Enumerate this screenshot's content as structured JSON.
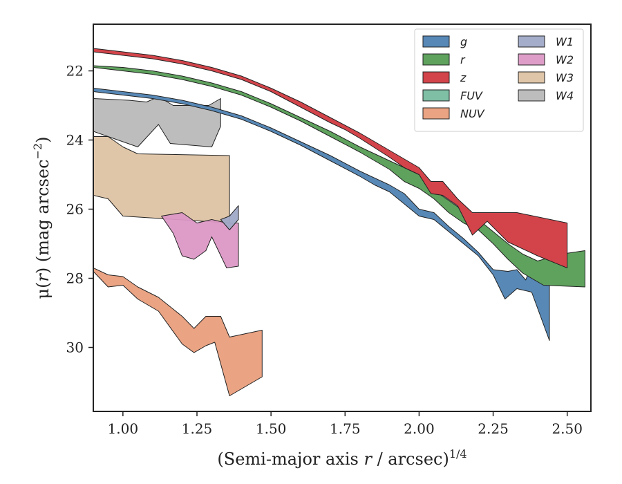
{
  "chart_data": {
    "type": "area",
    "xlabel": "(Semi-major axis r / arcsec)",
    "xlabel_parts": {
      "prefix": "(Semi-major axis ",
      "var": "r",
      "suffix": " / arcsec)",
      "sup": "1/4"
    },
    "ylabel_parts": {
      "prefix": "μ(",
      "var": "r",
      "suffix": ") (mag arcsec",
      "sup": "−2",
      "close": ")"
    },
    "xlim": [
      0.9,
      2.58
    ],
    "ylim": [
      31.85,
      20.65
    ],
    "y_inverted": true,
    "x_ticks": [
      1.0,
      1.25,
      1.5,
      1.75,
      2.0,
      2.25,
      2.5
    ],
    "x_tick_labels": [
      "1.00",
      "1.25",
      "1.50",
      "1.75",
      "2.00",
      "2.25",
      "2.50"
    ],
    "y_ticks": [
      22,
      24,
      26,
      28,
      30
    ],
    "y_tick_labels": [
      "22",
      "24",
      "26",
      "28",
      "30"
    ],
    "legend_position": "top-right",
    "legend_columns": 2,
    "series": [
      {
        "name": "W3",
        "color": "#d8b892",
        "opacity": 0.8,
        "upper": [
          [
            0.9,
            23.9
          ],
          [
            0.95,
            23.9
          ],
          [
            1.0,
            24.2
          ],
          [
            1.05,
            24.4
          ],
          [
            1.36,
            24.45
          ]
        ],
        "lower": [
          [
            0.9,
            25.6
          ],
          [
            0.95,
            25.7
          ],
          [
            1.0,
            26.2
          ],
          [
            1.36,
            26.4
          ]
        ]
      },
      {
        "name": "W2",
        "color": "#dc98c5",
        "opacity": 0.95,
        "upper": [
          [
            1.2,
            26.1
          ],
          [
            1.25,
            26.4
          ],
          [
            1.3,
            26.3
          ],
          [
            1.35,
            26.4
          ],
          [
            1.39,
            26.4
          ]
        ],
        "lower": [
          [
            1.13,
            26.2
          ],
          [
            1.17,
            26.7
          ],
          [
            1.2,
            27.35
          ],
          [
            1.24,
            27.45
          ],
          [
            1.28,
            27.2
          ],
          [
            1.3,
            26.8
          ],
          [
            1.35,
            27.7
          ],
          [
            1.39,
            27.65
          ]
        ]
      },
      {
        "name": "W1",
        "color": "#9fa9c6",
        "opacity": 0.95,
        "upper": [
          [
            1.33,
            26.3
          ],
          [
            1.36,
            26.2
          ],
          [
            1.39,
            25.9
          ]
        ],
        "lower": [
          [
            1.33,
            26.3
          ],
          [
            1.36,
            26.6
          ],
          [
            1.39,
            26.3
          ]
        ]
      },
      {
        "name": "W4",
        "color": "#b9b9b9",
        "opacity": 0.95,
        "upper": [
          [
            0.9,
            22.8
          ],
          [
            1.02,
            22.85
          ],
          [
            1.08,
            22.9
          ],
          [
            1.12,
            22.75
          ],
          [
            1.17,
            23.0
          ],
          [
            1.29,
            23.0
          ],
          [
            1.33,
            22.8
          ]
        ],
        "lower": [
          [
            0.9,
            23.75
          ],
          [
            1.05,
            24.2
          ],
          [
            1.12,
            23.55
          ],
          [
            1.16,
            24.1
          ],
          [
            1.3,
            24.2
          ],
          [
            1.33,
            23.6
          ]
        ]
      },
      {
        "name": "NUV",
        "color": "#eaa383",
        "opacity": 1,
        "upper": [
          [
            0.9,
            27.7
          ],
          [
            0.95,
            27.9
          ],
          [
            1.0,
            27.95
          ],
          [
            1.05,
            28.25
          ],
          [
            1.12,
            28.55
          ],
          [
            1.2,
            29.1
          ],
          [
            1.24,
            29.45
          ],
          [
            1.28,
            29.1
          ],
          [
            1.33,
            29.1
          ],
          [
            1.36,
            29.7
          ],
          [
            1.47,
            29.5
          ]
        ],
        "lower": [
          [
            0.9,
            27.8
          ],
          [
            0.95,
            28.25
          ],
          [
            1.0,
            28.2
          ],
          [
            1.05,
            28.6
          ],
          [
            1.12,
            28.95
          ],
          [
            1.2,
            29.9
          ],
          [
            1.24,
            30.15
          ],
          [
            1.28,
            29.95
          ],
          [
            1.31,
            29.85
          ],
          [
            1.36,
            31.4
          ],
          [
            1.47,
            30.85
          ]
        ]
      },
      {
        "name": "FUV",
        "color": "#7fbfa6",
        "opacity": 1,
        "upper": [],
        "lower": []
      },
      {
        "name": "g",
        "color": "#5788b6",
        "opacity": 1,
        "upper": [
          [
            0.9,
            22.5
          ],
          [
            1.0,
            22.6
          ],
          [
            1.1,
            22.7
          ],
          [
            1.2,
            22.85
          ],
          [
            1.3,
            23.05
          ],
          [
            1.4,
            23.3
          ],
          [
            1.5,
            23.65
          ],
          [
            1.6,
            24.05
          ],
          [
            1.7,
            24.45
          ],
          [
            1.8,
            24.9
          ],
          [
            1.9,
            25.3
          ],
          [
            1.95,
            25.55
          ],
          [
            2.0,
            26.0
          ],
          [
            2.05,
            26.1
          ],
          [
            2.1,
            26.5
          ],
          [
            2.15,
            26.85
          ],
          [
            2.2,
            27.25
          ],
          [
            2.25,
            27.75
          ],
          [
            2.3,
            27.8
          ],
          [
            2.33,
            27.75
          ],
          [
            2.36,
            28.05
          ],
          [
            2.38,
            27.6
          ],
          [
            2.44,
            28.0
          ]
        ],
        "lower": [
          [
            0.9,
            22.6
          ],
          [
            1.0,
            22.7
          ],
          [
            1.1,
            22.8
          ],
          [
            1.2,
            22.95
          ],
          [
            1.3,
            23.15
          ],
          [
            1.4,
            23.4
          ],
          [
            1.5,
            23.75
          ],
          [
            1.6,
            24.15
          ],
          [
            1.7,
            24.6
          ],
          [
            1.8,
            25.05
          ],
          [
            1.85,
            25.3
          ],
          [
            1.9,
            25.5
          ],
          [
            1.95,
            25.85
          ],
          [
            2.0,
            26.2
          ],
          [
            2.05,
            26.3
          ],
          [
            2.1,
            26.65
          ],
          [
            2.15,
            27.0
          ],
          [
            2.2,
            27.35
          ],
          [
            2.25,
            27.9
          ],
          [
            2.29,
            28.6
          ],
          [
            2.33,
            28.3
          ],
          [
            2.38,
            28.4
          ],
          [
            2.44,
            29.8
          ]
        ]
      },
      {
        "name": "r",
        "color": "#5fa25e",
        "opacity": 1,
        "upper": [
          [
            0.9,
            21.85
          ],
          [
            1.0,
            21.9
          ],
          [
            1.1,
            22.0
          ],
          [
            1.2,
            22.15
          ],
          [
            1.3,
            22.35
          ],
          [
            1.4,
            22.6
          ],
          [
            1.5,
            22.95
          ],
          [
            1.6,
            23.35
          ],
          [
            1.7,
            23.75
          ],
          [
            1.8,
            24.2
          ],
          [
            1.9,
            24.6
          ],
          [
            2.0,
            25.0
          ],
          [
            2.05,
            25.45
          ],
          [
            2.1,
            25.75
          ],
          [
            2.15,
            26.05
          ],
          [
            2.2,
            26.3
          ],
          [
            2.25,
            26.65
          ],
          [
            2.3,
            27.0
          ],
          [
            2.35,
            27.3
          ],
          [
            2.4,
            27.5
          ],
          [
            2.48,
            27.3
          ],
          [
            2.56,
            27.2
          ]
        ],
        "lower": [
          [
            0.9,
            21.9
          ],
          [
            1.0,
            22.0
          ],
          [
            1.1,
            22.1
          ],
          [
            1.2,
            22.25
          ],
          [
            1.3,
            22.45
          ],
          [
            1.4,
            22.7
          ],
          [
            1.5,
            23.05
          ],
          [
            1.6,
            23.45
          ],
          [
            1.7,
            23.9
          ],
          [
            1.8,
            24.35
          ],
          [
            1.85,
            24.6
          ],
          [
            1.9,
            24.85
          ],
          [
            1.95,
            25.2
          ],
          [
            2.0,
            25.4
          ],
          [
            2.05,
            25.7
          ],
          [
            2.1,
            26.1
          ],
          [
            2.15,
            26.4
          ],
          [
            2.2,
            26.6
          ],
          [
            2.25,
            27.0
          ],
          [
            2.3,
            27.45
          ],
          [
            2.35,
            27.85
          ],
          [
            2.42,
            28.2
          ],
          [
            2.56,
            28.25
          ]
        ]
      },
      {
        "name": "z",
        "color": "#d2444a",
        "opacity": 1,
        "upper": [
          [
            0.9,
            21.35
          ],
          [
            1.0,
            21.45
          ],
          [
            1.1,
            21.55
          ],
          [
            1.2,
            21.7
          ],
          [
            1.3,
            21.9
          ],
          [
            1.4,
            22.15
          ],
          [
            1.5,
            22.5
          ],
          [
            1.6,
            22.9
          ],
          [
            1.7,
            23.35
          ],
          [
            1.8,
            23.8
          ],
          [
            1.9,
            24.3
          ],
          [
            2.0,
            24.8
          ],
          [
            2.04,
            25.2
          ],
          [
            2.08,
            25.2
          ],
          [
            2.13,
            25.7
          ],
          [
            2.18,
            26.1
          ],
          [
            2.33,
            26.1
          ],
          [
            2.5,
            26.4
          ]
        ],
        "lower": [
          [
            0.9,
            21.45
          ],
          [
            1.0,
            21.55
          ],
          [
            1.1,
            21.65
          ],
          [
            1.2,
            21.8
          ],
          [
            1.3,
            22.0
          ],
          [
            1.4,
            22.25
          ],
          [
            1.5,
            22.6
          ],
          [
            1.6,
            23.05
          ],
          [
            1.7,
            23.5
          ],
          [
            1.75,
            23.7
          ],
          [
            1.8,
            23.95
          ],
          [
            1.9,
            24.5
          ],
          [
            1.95,
            24.8
          ],
          [
            2.0,
            25.0
          ],
          [
            2.04,
            25.55
          ],
          [
            2.08,
            25.6
          ],
          [
            2.13,
            25.9
          ],
          [
            2.18,
            26.75
          ],
          [
            2.23,
            26.35
          ],
          [
            2.3,
            26.95
          ],
          [
            2.4,
            27.35
          ],
          [
            2.5,
            27.7
          ]
        ]
      }
    ],
    "legend": {
      "col1": [
        "g",
        "r",
        "z",
        "FUV",
        "NUV"
      ],
      "col2": [
        "W1",
        "W2",
        "W3",
        "W4"
      ]
    }
  }
}
